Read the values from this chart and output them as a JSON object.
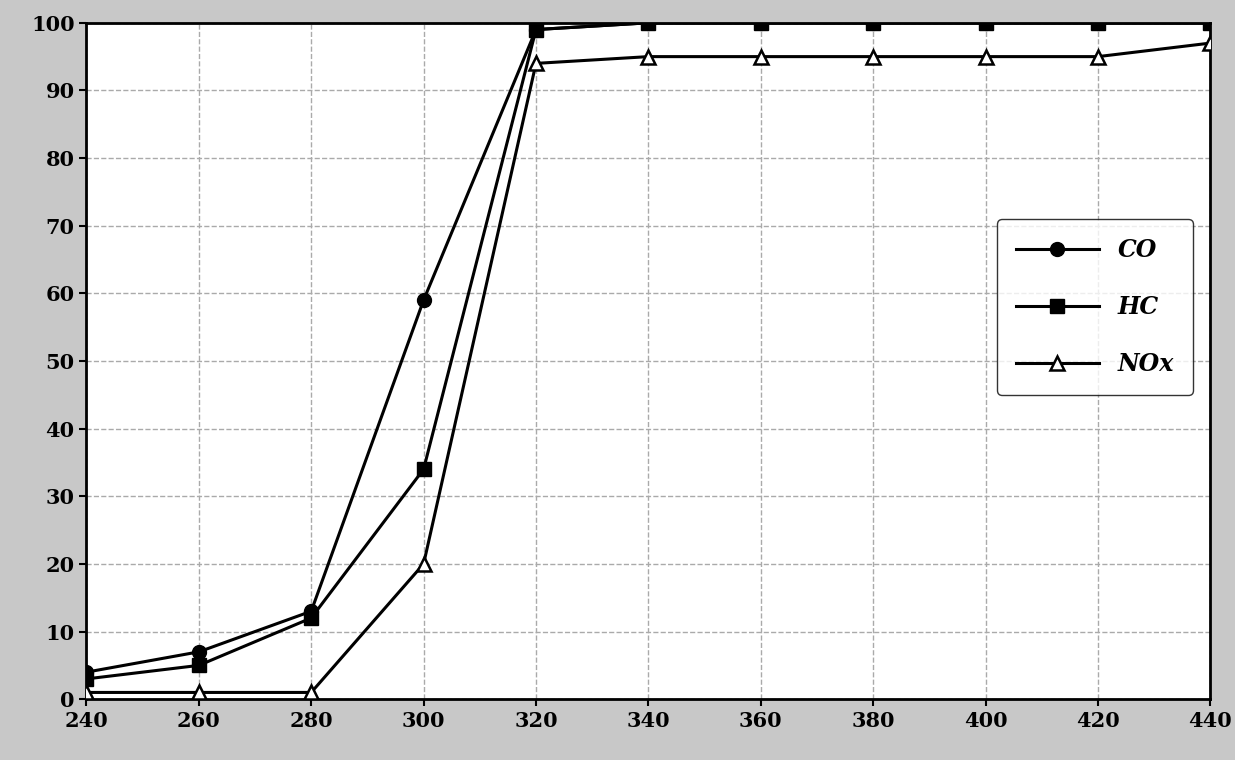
{
  "x": [
    240,
    260,
    280,
    300,
    320,
    340,
    360,
    380,
    400,
    420,
    440
  ],
  "CO": [
    4,
    7,
    13,
    59,
    99,
    100,
    100,
    100,
    100,
    100,
    100
  ],
  "HC": [
    3,
    5,
    12,
    34,
    99,
    100,
    100,
    100,
    100,
    100,
    100
  ],
  "NOx": [
    1,
    1,
    1,
    20,
    94,
    95,
    95,
    95,
    95,
    95,
    97
  ],
  "xlim": [
    240,
    440
  ],
  "ylim": [
    0,
    100
  ],
  "xticks": [
    240,
    260,
    280,
    300,
    320,
    340,
    360,
    380,
    400,
    420,
    440
  ],
  "yticks": [
    0,
    10,
    20,
    30,
    40,
    50,
    60,
    70,
    80,
    90,
    100
  ],
  "line_color": "#000000",
  "bg_color": "#ffffff",
  "fig_bg_color": "#c8c8c8",
  "legend_labels": [
    "CO",
    "HC",
    "NOx"
  ],
  "legend_fontsize": 17,
  "tick_fontsize": 15,
  "grid_color": "#aaaaaa",
  "marker_CO": "o",
  "marker_HC": "s",
  "marker_NOx": "^"
}
